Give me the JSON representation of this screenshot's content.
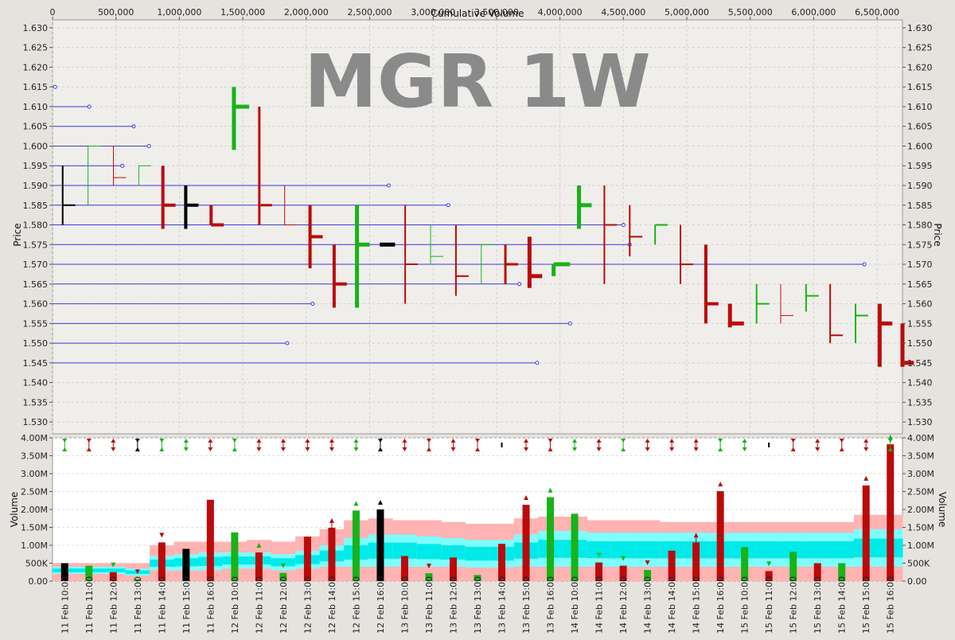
{
  "chart_data": [
    {
      "type": "volume-by-price",
      "title": "MGR 1W",
      "top_xlabel": "Cumulative Volume",
      "ylabel": "Price",
      "ylim": [
        1.527,
        1.632
      ],
      "xlim_cumvol": [
        0,
        6700000
      ],
      "y_ticks": [
        "1.530",
        "1.535",
        "1.540",
        "1.545",
        "1.550",
        "1.555",
        "1.560",
        "1.565",
        "1.570",
        "1.575",
        "1.580",
        "1.585",
        "1.590",
        "1.595",
        "1.600",
        "1.605",
        "1.610",
        "1.615",
        "1.620",
        "1.625",
        "1.630"
      ],
      "cumvol_ticks": [
        "0",
        "500,000",
        "1,000,000",
        "1,500,000",
        "2,000,000",
        "2,500,000",
        "3,000,000",
        "3,500,000",
        "4,000,000",
        "4,500,000",
        "5,000,000",
        "5,500,000",
        "6,000,000",
        "6,500,000"
      ],
      "volume_at_price": [
        {
          "price": 1.615,
          "cumvol": 20000
        },
        {
          "price": 1.61,
          "cumvol": 290000
        },
        {
          "price": 1.605,
          "cumvol": 640000
        },
        {
          "price": 1.6,
          "cumvol": 760000
        },
        {
          "price": 1.595,
          "cumvol": 550000
        },
        {
          "price": 1.59,
          "cumvol": 2650000
        },
        {
          "price": 1.585,
          "cumvol": 3120000
        },
        {
          "price": 1.58,
          "cumvol": 4500000
        },
        {
          "price": 1.575,
          "cumvol": 4550000
        },
        {
          "price": 1.57,
          "cumvol": 6400000
        },
        {
          "price": 1.565,
          "cumvol": 3680000
        },
        {
          "price": 1.56,
          "cumvol": 2050000
        },
        {
          "price": 1.555,
          "cumvol": 4080000
        },
        {
          "price": 1.55,
          "cumvol": 1850000
        },
        {
          "price": 1.545,
          "cumvol": 3820000
        }
      ],
      "bars": [
        {
          "x0": 80000,
          "x1": 180000,
          "high": 1.595,
          "low": 1.58,
          "open": 1.595,
          "close": 1.585,
          "color": "black",
          "weight": 2
        },
        {
          "x0": 280000,
          "x1": 380000,
          "high": 1.6,
          "low": 1.585,
          "open": 1.585,
          "close": 1.6,
          "color": "green",
          "weight": 1
        },
        {
          "x0": 480000,
          "x1": 580000,
          "high": 1.6,
          "low": 1.59,
          "open": 1.6,
          "close": 1.592,
          "color": "red",
          "weight": 1
        },
        {
          "x0": 680000,
          "x1": 780000,
          "high": 1.595,
          "low": 1.59,
          "open": 1.59,
          "close": 1.595,
          "color": "green",
          "weight": 1
        },
        {
          "x0": 870000,
          "x1": 970000,
          "high": 1.595,
          "low": 1.579,
          "open": 1.595,
          "close": 1.585,
          "color": "red",
          "weight": 4
        },
        {
          "x0": 1050000,
          "x1": 1150000,
          "high": 1.59,
          "low": 1.579,
          "open": 1.59,
          "close": 1.585,
          "color": "black",
          "weight": 4
        },
        {
          "x0": 1250000,
          "x1": 1350000,
          "high": 1.585,
          "low": 1.58,
          "open": 1.585,
          "close": 1.58,
          "color": "red",
          "weight": 4
        },
        {
          "x0": 1430000,
          "x1": 1550000,
          "high": 1.615,
          "low": 1.599,
          "open": 1.599,
          "close": 1.61,
          "color": "green",
          "weight": 5
        },
        {
          "x0": 1630000,
          "x1": 1730000,
          "high": 1.61,
          "low": 1.58,
          "open": 1.61,
          "close": 1.585,
          "color": "red",
          "weight": 3
        },
        {
          "x0": 1830000,
          "x1": 1930000,
          "high": 1.59,
          "low": 1.58,
          "open": 1.59,
          "close": 1.58,
          "color": "red",
          "weight": 1
        },
        {
          "x0": 2030000,
          "x1": 2130000,
          "high": 1.585,
          "low": 1.569,
          "open": 1.585,
          "close": 1.577,
          "color": "red",
          "weight": 4
        },
        {
          "x0": 2220000,
          "x1": 2320000,
          "high": 1.575,
          "low": 1.559,
          "open": 1.575,
          "close": 1.565,
          "color": "red",
          "weight": 4
        },
        {
          "x0": 2400000,
          "x1": 2500000,
          "high": 1.585,
          "low": 1.559,
          "open": 1.559,
          "close": 1.575,
          "color": "green",
          "weight": 5
        },
        {
          "x0": 2580000,
          "x1": 2700000,
          "high": 1.575,
          "low": 1.575,
          "open": 1.575,
          "close": 1.575,
          "color": "black",
          "weight": 5
        },
        {
          "x0": 2780000,
          "x1": 2880000,
          "high": 1.585,
          "low": 1.56,
          "open": 1.585,
          "close": 1.57,
          "color": "red",
          "weight": 2
        },
        {
          "x0": 2980000,
          "x1": 3080000,
          "high": 1.58,
          "low": 1.57,
          "open": 1.57,
          "close": 1.572,
          "color": "green",
          "weight": 1
        },
        {
          "x0": 3180000,
          "x1": 3280000,
          "high": 1.58,
          "low": 1.562,
          "open": 1.58,
          "close": 1.567,
          "color": "red",
          "weight": 2
        },
        {
          "x0": 3380000,
          "x1": 3480000,
          "high": 1.575,
          "low": 1.565,
          "open": 1.565,
          "close": 1.575,
          "color": "green",
          "weight": 1
        },
        {
          "x0": 3570000,
          "x1": 3670000,
          "high": 1.575,
          "low": 1.565,
          "open": 1.575,
          "close": 1.57,
          "color": "red",
          "weight": 3
        },
        {
          "x0": 3760000,
          "x1": 3860000,
          "high": 1.577,
          "low": 1.564,
          "open": 1.577,
          "close": 1.567,
          "color": "red",
          "weight": 5
        },
        {
          "x0": 3950000,
          "x1": 4080000,
          "high": 1.57,
          "low": 1.567,
          "open": 1.567,
          "close": 1.57,
          "color": "green",
          "weight": 5
        },
        {
          "x0": 4150000,
          "x1": 4250000,
          "high": 1.59,
          "low": 1.579,
          "open": 1.579,
          "close": 1.585,
          "color": "green",
          "weight": 5
        },
        {
          "x0": 4350000,
          "x1": 4450000,
          "high": 1.59,
          "low": 1.565,
          "open": 1.59,
          "close": 1.58,
          "color": "red",
          "weight": 2
        },
        {
          "x0": 4550000,
          "x1": 4650000,
          "high": 1.585,
          "low": 1.572,
          "open": 1.585,
          "close": 1.577,
          "color": "red",
          "weight": 2
        },
        {
          "x0": 4750000,
          "x1": 4850000,
          "high": 1.58,
          "low": 1.575,
          "open": 1.575,
          "close": 1.58,
          "color": "green",
          "weight": 2
        },
        {
          "x0": 4950000,
          "x1": 5050000,
          "high": 1.58,
          "low": 1.565,
          "open": 1.58,
          "close": 1.57,
          "color": "red",
          "weight": 2
        },
        {
          "x0": 5150000,
          "x1": 5250000,
          "high": 1.575,
          "low": 1.555,
          "open": 1.575,
          "close": 1.56,
          "color": "red",
          "weight": 4
        },
        {
          "x0": 5340000,
          "x1": 5450000,
          "high": 1.56,
          "low": 1.554,
          "open": 1.56,
          "close": 1.555,
          "color": "red",
          "weight": 5
        },
        {
          "x0": 5550000,
          "x1": 5650000,
          "high": 1.565,
          "low": 1.555,
          "open": 1.555,
          "close": 1.56,
          "color": "green",
          "weight": 2
        },
        {
          "x0": 5740000,
          "x1": 5840000,
          "high": 1.565,
          "low": 1.555,
          "open": 1.565,
          "close": 1.557,
          "color": "red",
          "weight": 1
        },
        {
          "x0": 5940000,
          "x1": 6040000,
          "high": 1.565,
          "low": 1.558,
          "open": 1.558,
          "close": 1.562,
          "color": "green",
          "weight": 2
        },
        {
          "x0": 6130000,
          "x1": 6230000,
          "high": 1.565,
          "low": 1.55,
          "open": 1.565,
          "close": 1.552,
          "color": "red",
          "weight": 2
        },
        {
          "x0": 6330000,
          "x1": 6430000,
          "high": 1.56,
          "low": 1.55,
          "open": 1.55,
          "close": 1.557,
          "color": "green",
          "weight": 2
        },
        {
          "x0": 6520000,
          "x1": 6620000,
          "high": 1.56,
          "low": 1.544,
          "open": 1.56,
          "close": 1.555,
          "color": "red",
          "weight": 5
        },
        {
          "x0": 6700000,
          "x1": 6790000,
          "high": 1.555,
          "low": 1.544,
          "open": 1.555,
          "close": 1.545,
          "color": "red",
          "weight": 5
        }
      ]
    },
    {
      "type": "bar",
      "ylabel": "Volume",
      "ylim": [
        0,
        4000000
      ],
      "y_ticks": [
        "0.00",
        "500K",
        "1.00M",
        "1.50M",
        "2.00M",
        "2.50M",
        "3.00M",
        "3.50M",
        "4.00M"
      ],
      "categories": [
        "11 Feb 10:00",
        "11 Feb 11:00",
        "11 Feb 12:00",
        "11 Feb 13:00",
        "11 Feb 14:00",
        "11 Feb 15:00",
        "11 Feb 16:00",
        "12 Feb 10:00",
        "12 Feb 11:00",
        "12 Feb 12:00",
        "12 Feb 13:00",
        "12 Feb 14:00",
        "12 Feb 15:00",
        "12 Feb 16:00",
        "13 Feb 10:00",
        "13 Feb 11:00",
        "13 Feb 12:00",
        "13 Feb 13:00",
        "13 Feb 14:00",
        "13 Feb 15:00",
        "13 Feb 16:00",
        "14 Feb 10:00",
        "14 Feb 11:00",
        "14 Feb 12:00",
        "14 Feb 13:00",
        "14 Feb 14:00",
        "14 Feb 15:00",
        "14 Feb 16:00",
        "15 Feb 10:00",
        "15 Feb 11:00",
        "15 Feb 12:00",
        "15 Feb 13:00",
        "15 Feb 14:00",
        "15 Feb 15:00",
        "15 Feb 16:00"
      ],
      "values": [
        500000,
        430000,
        250000,
        60000,
        1080000,
        900000,
        2270000,
        1360000,
        800000,
        230000,
        1240000,
        1490000,
        1970000,
        2000000,
        700000,
        220000,
        660000,
        170000,
        1040000,
        2130000,
        2340000,
        1880000,
        520000,
        430000,
        310000,
        850000,
        1080000,
        2510000,
        950000,
        280000,
        820000,
        500000,
        500000,
        2670000,
        3820000
      ],
      "colors": [
        "black",
        "green",
        "red",
        "green",
        "red",
        "black",
        "red",
        "green",
        "red",
        "green",
        "red",
        "red",
        "green",
        "black",
        "red",
        "green",
        "red",
        "green",
        "red",
        "red",
        "green",
        "green",
        "red",
        "red",
        "green",
        "red",
        "red",
        "red",
        "green",
        "red",
        "green",
        "red",
        "green",
        "red",
        "red"
      ],
      "band_high": [
        500000,
        500000,
        500000,
        500000,
        1000000,
        1100000,
        1100000,
        1100000,
        1150000,
        1100000,
        1250000,
        1450000,
        1700000,
        1750000,
        1700000,
        1700000,
        1650000,
        1600000,
        1600000,
        1750000,
        1800000,
        1800000,
        1700000,
        1700000,
        1700000,
        1650000,
        1650000,
        1650000,
        1650000,
        1650000,
        1650000,
        1650000,
        1650000,
        1850000,
        1850000
      ],
      "band_mid_high": [
        400000,
        400000,
        400000,
        350000,
        700000,
        750000,
        800000,
        800000,
        800000,
        750000,
        850000,
        1000000,
        1200000,
        1300000,
        1300000,
        1250000,
        1200000,
        1150000,
        1150000,
        1300000,
        1400000,
        1400000,
        1350000,
        1350000,
        1350000,
        1350000,
        1350000,
        1350000,
        1350000,
        1350000,
        1350000,
        1350000,
        1350000,
        1450000,
        1450000
      ],
      "band_low": [
        200000,
        200000,
        200000,
        150000,
        300000,
        300000,
        300000,
        350000,
        350000,
        300000,
        350000,
        400000,
        400000,
        400000,
        400000,
        400000,
        400000,
        380000,
        380000,
        400000,
        400000,
        400000,
        400000,
        400000,
        400000,
        400000,
        400000,
        400000,
        400000,
        400000,
        400000,
        400000,
        400000,
        400000,
        400000
      ],
      "signals": [
        "",
        "",
        "down-green",
        "down-red",
        "down-red",
        "",
        "",
        "",
        "up-green",
        "down-green",
        "",
        "up-red",
        "up-green",
        "up-black",
        "",
        "down-red",
        "",
        "",
        "",
        "up-red",
        "up-green",
        "",
        "down-green",
        "down-green",
        "down-red",
        "",
        "up-red",
        "up-red",
        "",
        "down-green",
        "",
        "",
        "",
        "up-red",
        "up-green"
      ],
      "header_arrows": [
        "down-up-green",
        "down-up-red",
        "up-down-red",
        "down-up-black",
        "down-up-green",
        "up-down-green",
        "up-down-red",
        "down-up-green",
        "up-down-red",
        "up-down-red",
        "up-down-red",
        "up-down-red",
        "up-down-green",
        "down-up-black",
        "up-down-red",
        "down-up-red",
        "up-down-red",
        "down-up-red",
        "tick-black",
        "up-down-red",
        "down-up-red",
        "up-down-green",
        "up-down-red",
        "down-up-green",
        "up-down-red",
        "up-down-red",
        "up-down-red",
        "down-up-green",
        "up-down-green",
        "tick-black",
        "down-up-red",
        "up-down-red",
        "down-up-red",
        "up-down-red",
        "down-up-green"
      ]
    }
  ]
}
